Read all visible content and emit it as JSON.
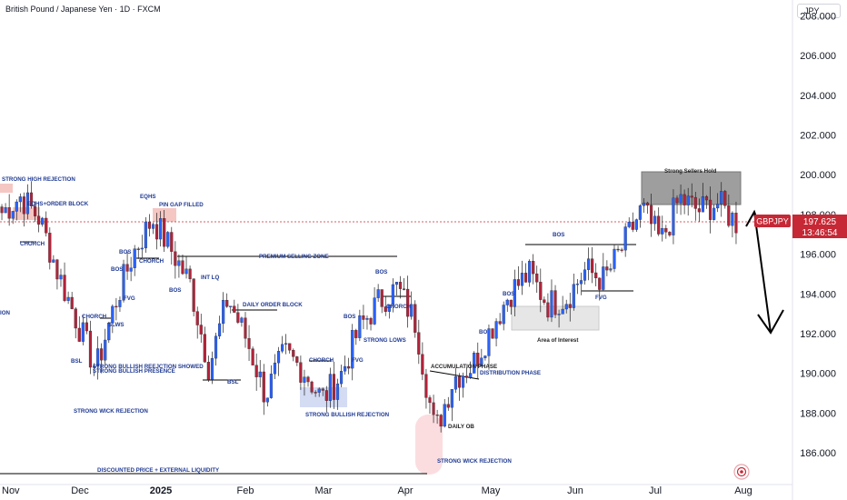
{
  "header": {
    "title": "British Pound / Japanese Yen · 1D · FXCM"
  },
  "currency_button": "JPY",
  "price_badge": {
    "symbol": "GBPJPY",
    "price": "197.625",
    "countdown": "13:46:54"
  },
  "colors": {
    "up": "#2962ff",
    "down": "#b2233a",
    "annotation": "#1f3a93",
    "badge": "#c62835"
  },
  "chart_data": {
    "type": "candlestick",
    "title": "British Pound / Japanese Yen · 1D · FXCM",
    "symbol": "GBPJPY",
    "y_axis": {
      "ticks": [
        "208.000",
        "206.000",
        "204.000",
        "202.000",
        "200.000",
        "198.000",
        "196.000",
        "194.000",
        "192.000",
        "190.000",
        "188.000",
        "186.000"
      ],
      "range": [
        184.4,
        208.8
      ]
    },
    "x_axis": {
      "ticks": [
        "Nov",
        "Dec",
        "2025",
        "Feb",
        "Mar",
        "Apr",
        "May",
        "Jun",
        "Jul",
        "Aug"
      ]
    },
    "current_price": 197.625,
    "weekly_closes": [
      [
        "2024-10-28",
        198.1
      ],
      [
        "2024-11-04",
        198.9
      ],
      [
        "2024-11-11",
        197.8
      ],
      [
        "2024-11-18",
        195.0
      ],
      [
        "2024-11-25",
        192.6
      ],
      [
        "2024-12-02",
        190.2
      ],
      [
        "2024-12-09",
        193.5
      ],
      [
        "2024-12-16",
        196.1
      ],
      [
        "2024-12-23",
        197.8
      ],
      [
        "2024-12-30",
        196.2
      ],
      [
        "2025-01-06",
        194.5
      ],
      [
        "2025-01-13",
        190.3
      ],
      [
        "2025-01-20",
        193.8
      ],
      [
        "2025-01-27",
        191.7
      ],
      [
        "2025-02-03",
        188.9
      ],
      [
        "2025-02-10",
        191.0
      ],
      [
        "2025-02-17",
        190.2
      ],
      [
        "2025-02-24",
        188.7
      ],
      [
        "2025-03-03",
        189.9
      ],
      [
        "2025-03-10",
        192.3
      ],
      [
        "2025-03-17",
        193.6
      ],
      [
        "2025-03-24",
        194.3
      ],
      [
        "2025-03-31",
        192.5
      ],
      [
        "2025-04-07",
        187.0
      ],
      [
        "2025-04-14",
        189.8
      ],
      [
        "2025-04-21",
        190.4
      ],
      [
        "2025-04-28",
        192.3
      ],
      [
        "2025-05-05",
        194.1
      ],
      [
        "2025-05-12",
        195.0
      ],
      [
        "2025-05-19",
        193.5
      ],
      [
        "2025-05-26",
        193.8
      ],
      [
        "2025-06-02",
        195.2
      ],
      [
        "2025-06-09",
        194.7
      ],
      [
        "2025-06-16",
        196.4
      ],
      [
        "2025-06-23",
        198.3
      ],
      [
        "2025-06-30",
        196.6
      ],
      [
        "2025-07-07",
        198.8
      ],
      [
        "2025-07-14",
        198.2
      ],
      [
        "2025-07-21",
        198.6
      ],
      [
        "2025-07-28",
        197.6
      ]
    ],
    "annotations": [
      {
        "text": "STRONG HIGH REJECTION"
      },
      {
        "text": "EQHS+ORDER BLOCK"
      },
      {
        "text": "CHORCH"
      },
      {
        "text": "ION"
      },
      {
        "text": "CHORCH"
      },
      {
        "text": "SLWS"
      },
      {
        "text": "FVG"
      },
      {
        "text": "BOS"
      },
      {
        "text": "BOS"
      },
      {
        "text": "CHORCH"
      },
      {
        "text": "EQHS"
      },
      {
        "text": "PIN GAP FILLED"
      },
      {
        "text": "BOS"
      },
      {
        "text": "BSL"
      },
      {
        "text": "STRONG BULLISH REEJCTION SHOWED"
      },
      {
        "text": "STRONG BULLISH PRESENCE"
      },
      {
        "text": "STRONG WICK REJECTION"
      },
      {
        "text": "PREMIUM SELLING ZONE"
      },
      {
        "text": "INT LQ"
      },
      {
        "text": "DAILY ORDER BLOCK"
      },
      {
        "text": "BSL"
      },
      {
        "text": "BOS"
      },
      {
        "text": "BOS"
      },
      {
        "text": "CHORCH"
      },
      {
        "text": "CHORCH"
      },
      {
        "text": "STRONG LOWS"
      },
      {
        "text": "FVG"
      },
      {
        "text": "STRONG BULLISH REJECTION"
      },
      {
        "text": "DISCOUNTED PRICE + EXTERNAL LIQUIDITY"
      },
      {
        "text": "ACCUMULATION PHASE"
      },
      {
        "text": "DISTRIBUTION PHASE"
      },
      {
        "text": "DAILY OB"
      },
      {
        "text": "STRONG WICK REJECTION"
      },
      {
        "text": "BO"
      },
      {
        "text": "BOS"
      },
      {
        "text": "BOS"
      },
      {
        "text": "FVG"
      },
      {
        "text": "Area of Interest"
      },
      {
        "text": "Strong Sellers Hold"
      }
    ]
  }
}
